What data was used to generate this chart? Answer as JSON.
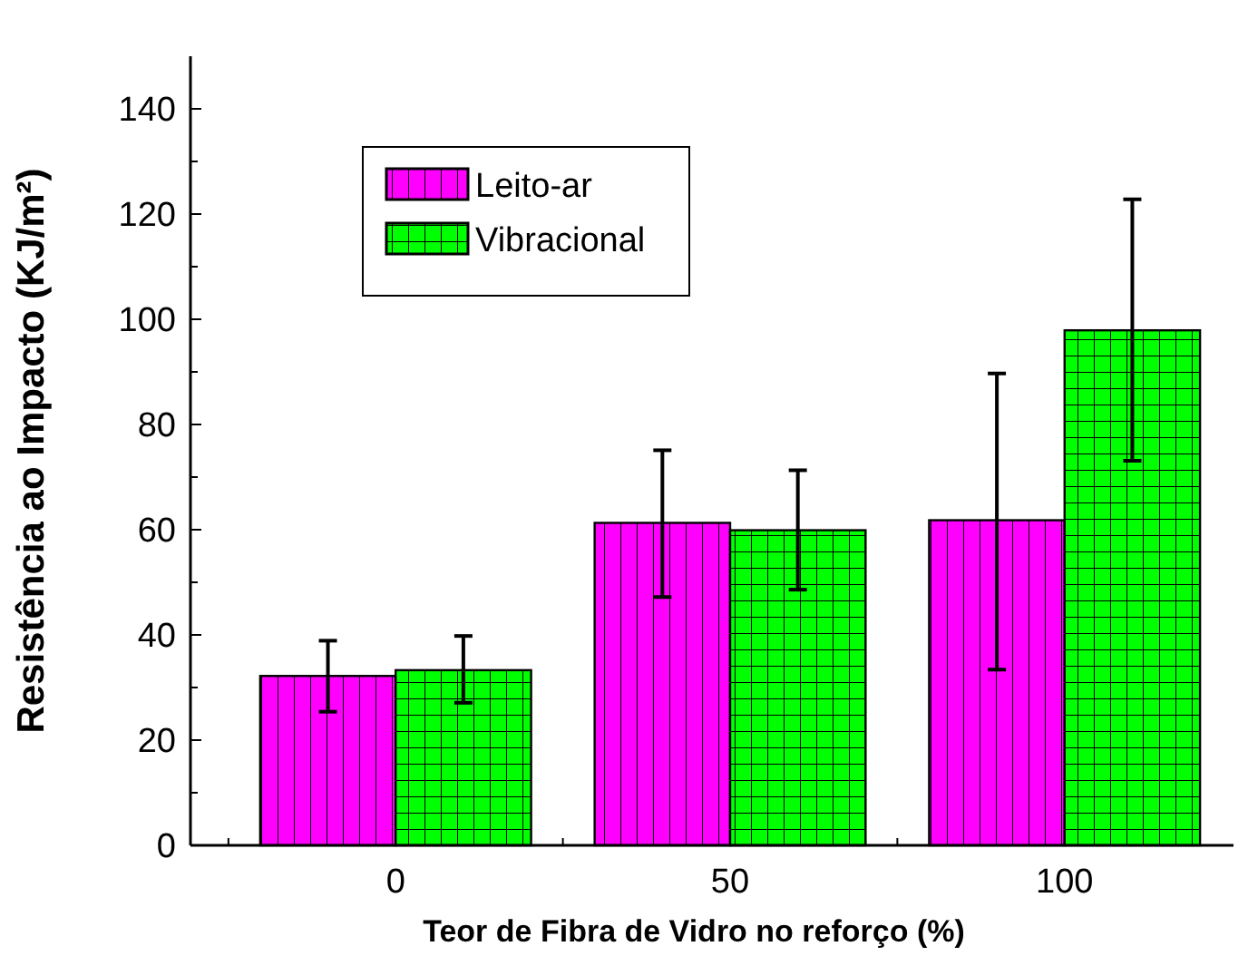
{
  "chart_data": {
    "type": "bar",
    "xlabel": "Teor de Fibra de Vidro no reforço (%)",
    "ylabel": "Resistência ao Impacto (KJ/m²)",
    "categories": [
      "0",
      "50",
      "100"
    ],
    "series": [
      {
        "name": "Leito-ar",
        "color": "#ff00ff",
        "values": [
          32.2,
          61.3,
          61.8
        ],
        "errors": [
          [
            25.4,
            38.9
          ],
          [
            47.2,
            75.1
          ],
          [
            33.4,
            89.7
          ]
        ]
      },
      {
        "name": "Vibracional",
        "color": "#00ff00",
        "values": [
          33.3,
          59.9,
          97.9
        ],
        "errors": [
          [
            27.1,
            39.8
          ],
          [
            48.6,
            71.3
          ],
          [
            73.1,
            122.8
          ]
        ]
      }
    ],
    "ylim": [
      0,
      150
    ],
    "yticks": [
      0,
      {
        "value": 10,
        "label": null
      },
      20,
      {
        "value": 30,
        "label": null
      },
      40,
      {
        "value": 50,
        "label": null
      },
      60,
      {
        "value": 70,
        "label": null
      },
      80,
      {
        "value": 90,
        "label": null
      },
      100,
      {
        "value": 110,
        "label": null
      },
      120,
      {
        "value": 130,
        "label": null
      },
      140
    ],
    "legend": "top left",
    "grid": false
  }
}
